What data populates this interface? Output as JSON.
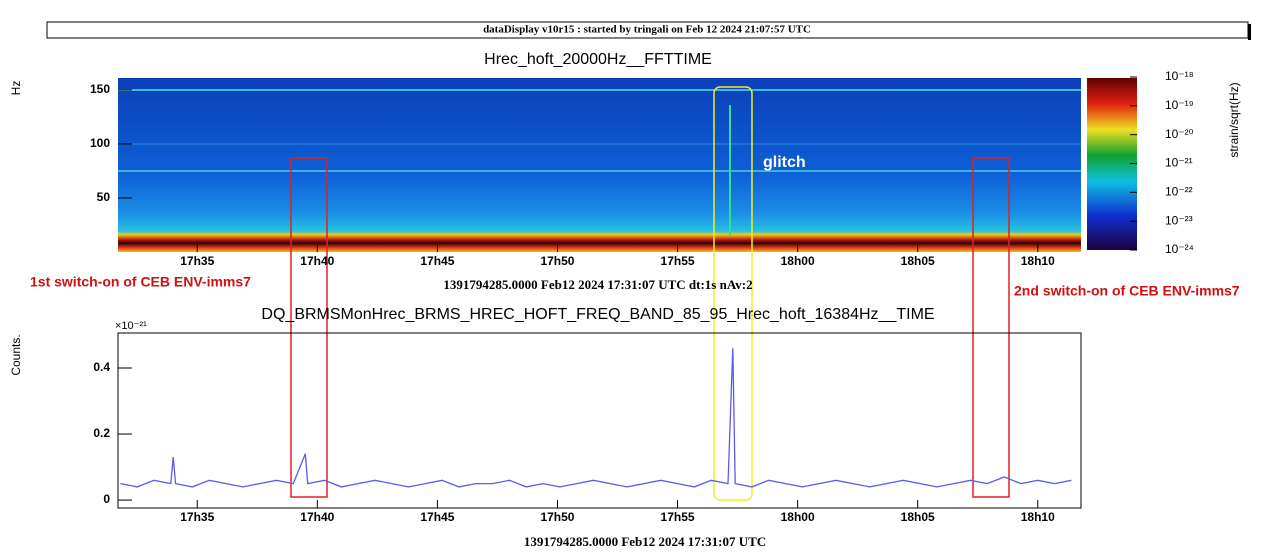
{
  "header": "dataDisplay v10r15 : started by tringali on Feb 12 2024 21:07:57 UTC",
  "annotations": [
    "1st switch-on of CEB ENV-imms7",
    "2nd switch-on of CEB ENV-imms7",
    "glitch"
  ],
  "chart_data": [
    {
      "type": "heatmap",
      "title": "Hrec_hoft_20000Hz__FFTTIME",
      "y_label": "Hz",
      "x_label": "1391794285.0000 Feb12 2024 17:31:07 UTC dt:1s nAv:2",
      "xlim": [
        31.7,
        71.8
      ],
      "xticks": [
        {
          "value": 35,
          "label": "17h35"
        },
        {
          "value": 40,
          "label": "17h40"
        },
        {
          "value": 45,
          "label": "17h45"
        },
        {
          "value": 50,
          "label": "17h50"
        },
        {
          "value": 55,
          "label": "17h55"
        },
        {
          "value": 60,
          "label": "18h00"
        },
        {
          "value": 65,
          "label": "18h05"
        },
        {
          "value": 70,
          "label": "18h10"
        }
      ],
      "ylim": [
        0,
        161
      ],
      "yticks": [
        50,
        100,
        150
      ],
      "colorbar": {
        "label": "strain/sqrt(Hz)",
        "log": true,
        "zlim": [
          1e-24,
          1e-18
        ],
        "zticks": [
          {
            "value": 1e-18,
            "label": "10⁻¹⁸"
          },
          {
            "value": 1e-19,
            "label": "10⁻¹⁹"
          },
          {
            "value": 1e-20,
            "label": "10⁻²⁰"
          },
          {
            "value": 1e-21,
            "label": "10⁻²¹"
          },
          {
            "value": 1e-22,
            "label": "10⁻²²"
          },
          {
            "value": 1e-23,
            "label": "10⁻²³"
          },
          {
            "value": 1e-24,
            "label": "10⁻²⁴"
          }
        ]
      }
    },
    {
      "type": "line",
      "title": "DQ_BRMSMonHrec_BRMS_HREC_HOFT_FREQ_BAND_85_95_Hrec_hoft_16384Hz__TIME",
      "y_label": "Counts.",
      "y_multiplier": "×10⁻²¹",
      "x_label": "1391794285.0000 Feb12 2024 17:31:07 UTC",
      "color": "#5a5af0",
      "xlim": [
        31.7,
        71.8
      ],
      "xticks": [
        {
          "value": 35,
          "label": "17h35"
        },
        {
          "value": 40,
          "label": "17h40"
        },
        {
          "value": 45,
          "label": "17h45"
        },
        {
          "value": 50,
          "label": "17h50"
        },
        {
          "value": 55,
          "label": "17h55"
        },
        {
          "value": 60,
          "label": "18h00"
        },
        {
          "value": 65,
          "label": "18h05"
        },
        {
          "value": 70,
          "label": "18h10"
        }
      ],
      "ylim": [
        -0.024,
        0.506
      ],
      "yticks": [
        0,
        0.2,
        0.4
      ],
      "x": [
        31.8,
        32.5,
        33.2,
        33.9,
        34.0,
        34.1,
        34.8,
        35.5,
        36.2,
        36.9,
        37.6,
        38.3,
        39.0,
        39.5,
        39.6,
        40.3,
        41.0,
        41.7,
        42.4,
        43.1,
        43.8,
        44.5,
        45.2,
        45.9,
        46.6,
        47.3,
        48.0,
        48.7,
        49.4,
        50.1,
        50.8,
        51.5,
        52.2,
        52.9,
        53.6,
        54.3,
        55.0,
        55.7,
        56.4,
        57.1,
        57.3,
        57.4,
        58.1,
        58.8,
        59.5,
        60.2,
        60.9,
        61.6,
        62.3,
        63.0,
        63.7,
        64.4,
        65.1,
        65.8,
        66.5,
        67.2,
        67.9,
        68.6,
        69.3,
        70.0,
        70.7,
        71.4
      ],
      "values": [
        0.05,
        0.04,
        0.06,
        0.05,
        0.13,
        0.05,
        0.04,
        0.06,
        0.05,
        0.04,
        0.05,
        0.06,
        0.05,
        0.14,
        0.05,
        0.06,
        0.04,
        0.05,
        0.06,
        0.05,
        0.04,
        0.05,
        0.06,
        0.04,
        0.05,
        0.05,
        0.06,
        0.04,
        0.05,
        0.04,
        0.05,
        0.06,
        0.05,
        0.04,
        0.05,
        0.06,
        0.05,
        0.04,
        0.06,
        0.05,
        0.46,
        0.05,
        0.04,
        0.06,
        0.05,
        0.04,
        0.05,
        0.06,
        0.05,
        0.04,
        0.05,
        0.06,
        0.05,
        0.04,
        0.05,
        0.06,
        0.05,
        0.07,
        0.05,
        0.06,
        0.05,
        0.06
      ]
    }
  ]
}
